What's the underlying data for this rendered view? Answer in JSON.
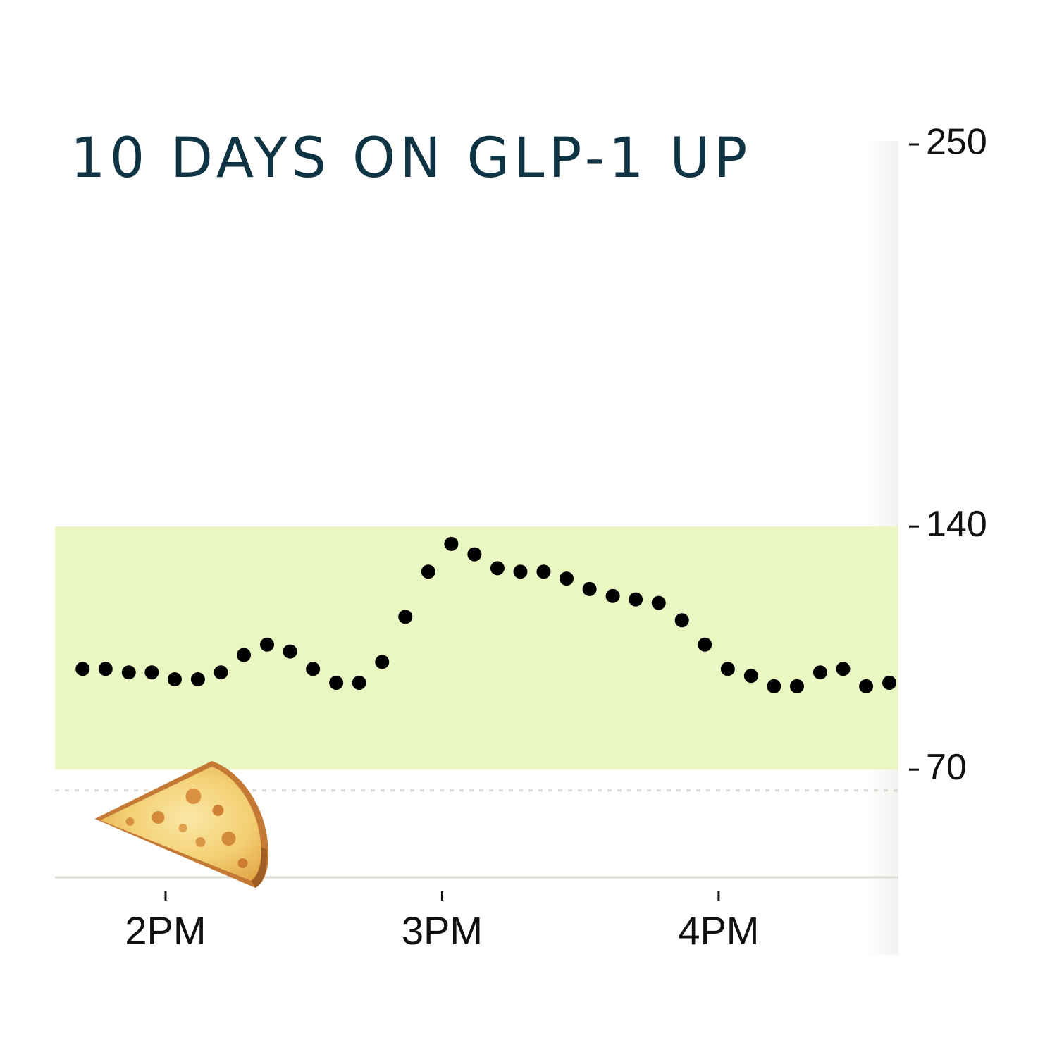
{
  "chart_data": {
    "type": "scatter",
    "title": "10 DAYS ON GLP-1 UP",
    "xlabel": "",
    "ylabel": "",
    "x_tick_labels": [
      "2PM",
      "3PM",
      "4PM"
    ],
    "x_tick_values": [
      14,
      15,
      16
    ],
    "xlim": [
      13.6,
      16.65
    ],
    "y_tick_labels": [
      "250",
      "140",
      "70"
    ],
    "y_tick_values": [
      250,
      140,
      70
    ],
    "ylim": [
      39,
      250
    ],
    "y_axis_position": "right",
    "target_range": [
      70,
      140
    ],
    "target_range_color": "#eaf7c3",
    "low_threshold": 64,
    "grid": false,
    "marker_color": "#000000",
    "annotation_icon": "pizza-slice-icon",
    "annotation_x": 14.07,
    "series": [
      {
        "x": [
          13.7,
          13.783,
          13.867,
          13.95,
          14.033,
          14.117,
          14.2,
          14.283,
          14.367,
          14.45,
          14.533,
          14.617,
          14.7,
          14.783,
          14.867,
          14.95,
          15.033,
          15.117,
          15.2,
          15.283,
          15.367,
          15.45,
          15.533,
          15.617,
          15.7,
          15.783,
          15.867,
          15.95,
          16.033,
          16.117,
          16.2,
          16.283,
          16.367,
          16.45,
          16.533,
          16.617
        ],
        "y": [
          99,
          99,
          98,
          98,
          96,
          96,
          98,
          103,
          106,
          104,
          99,
          95,
          95,
          101,
          114,
          127,
          135,
          132,
          128,
          127,
          127,
          125,
          122,
          120,
          119,
          118,
          113,
          106,
          99,
          97,
          94,
          94,
          98,
          99,
          94,
          95
        ]
      }
    ]
  }
}
